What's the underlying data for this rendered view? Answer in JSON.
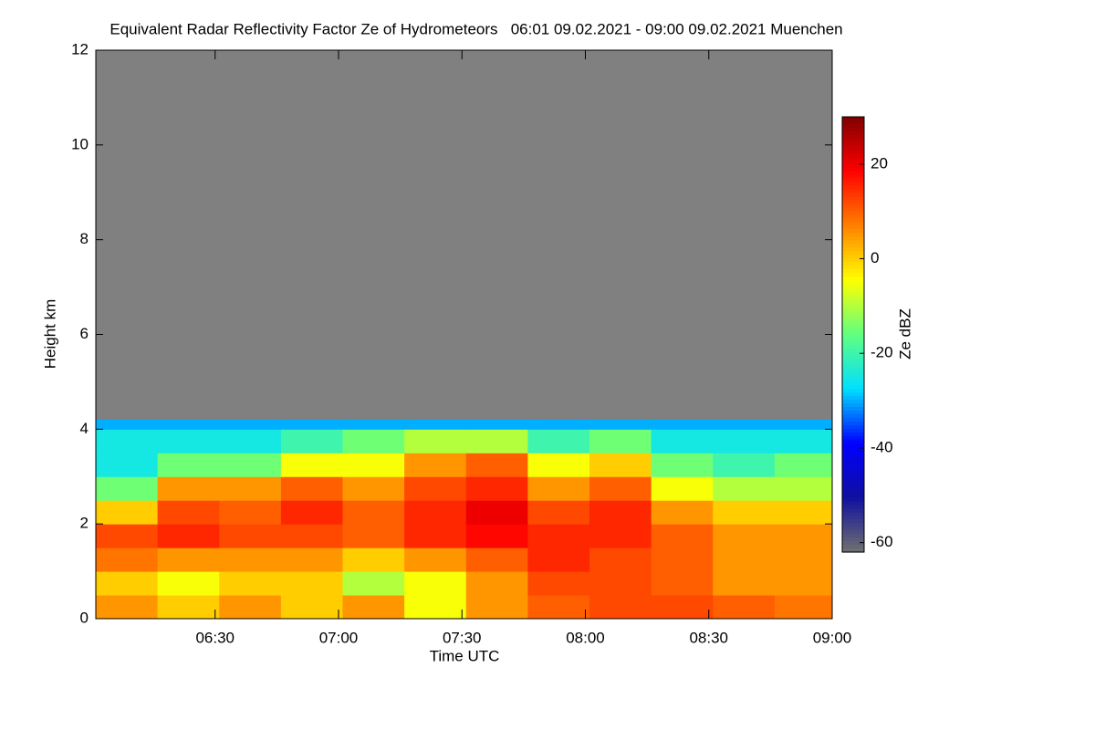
{
  "chart_data": {
    "type": "heatmap",
    "title": "Equivalent Radar Reflectivity Factor Ze of Hydrometeors   06:01 09.02.2021 - 09:00 09.02.2021 Muenchen",
    "x_label": "Time UTC",
    "y_label": "Height km",
    "colorbar_label": "Ze dBZ",
    "background": "#808080",
    "xlim": [
      361,
      540
    ],
    "xticks": [
      {
        "value": 390,
        "label": "06:30"
      },
      {
        "value": 420,
        "label": "07:00"
      },
      {
        "value": 450,
        "label": "07:30"
      },
      {
        "value": 480,
        "label": "08:00"
      },
      {
        "value": 510,
        "label": "08:30"
      },
      {
        "value": 540,
        "label": "09:00"
      }
    ],
    "ylim": [
      0,
      12
    ],
    "yticks": [
      0,
      2,
      4,
      6,
      8,
      10,
      12
    ],
    "zlim": [
      -62,
      30
    ],
    "zticks": [
      -60,
      -40,
      -20,
      0,
      20
    ],
    "colormap": [
      "#707070",
      "#1010a0",
      "#0000ff",
      "#00e0ff",
      "#60ff80",
      "#ffff00",
      "#ff8000",
      "#ff0000",
      "#800000"
    ],
    "x": [
      361,
      376,
      391,
      406,
      421,
      436,
      451,
      466,
      481,
      496,
      511,
      526,
      540
    ],
    "y": [
      0,
      0.5,
      1,
      1.5,
      2,
      2.5,
      3,
      3.5,
      4,
      4.2
    ],
    "z": [
      [
        5,
        0,
        5,
        0,
        5,
        -5,
        5,
        10,
        12,
        12,
        10,
        8
      ],
      [
        0,
        -5,
        0,
        0,
        -10,
        -5,
        5,
        12,
        12,
        10,
        5,
        5
      ],
      [
        8,
        5,
        5,
        5,
        0,
        5,
        10,
        15,
        12,
        10,
        5,
        5
      ],
      [
        12,
        15,
        12,
        12,
        10,
        15,
        18,
        15,
        15,
        10,
        5,
        5
      ],
      [
        0,
        12,
        10,
        15,
        10,
        15,
        20,
        12,
        15,
        5,
        0,
        0
      ],
      [
        -15,
        5,
        5,
        10,
        5,
        12,
        15,
        5,
        10,
        -5,
        -10,
        -10
      ],
      [
        -25,
        -15,
        -15,
        -5,
        -5,
        5,
        10,
        -5,
        0,
        -15,
        -20,
        -15
      ],
      [
        -25,
        -25,
        -25,
        -20,
        -15,
        -10,
        -10,
        -20,
        -15,
        -25,
        -25,
        -25
      ],
      [
        -30,
        -30,
        -30,
        -30,
        -30,
        -30,
        -30,
        -30,
        -30,
        -30,
        -30,
        -30
      ]
    ]
  }
}
